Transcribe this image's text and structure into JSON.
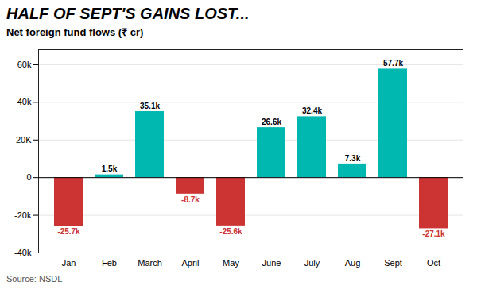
{
  "chart_data": {
    "type": "bar",
    "title": "HALF OF SEPT'S GAINS LOST...",
    "subtitle": "Net foreign fund flows (₹ cr)",
    "annotations": [
      "Source: NSDL"
    ],
    "categories": [
      "Jan",
      "Feb",
      "March",
      "April",
      "May",
      "June",
      "July",
      "Aug",
      "Sept",
      "Oct"
    ],
    "values": [
      -25.7,
      1.5,
      35.1,
      -8.7,
      -25.6,
      26.6,
      32.4,
      7.3,
      57.7,
      -27.1
    ],
    "value_labels": [
      "-25.7k",
      "1.5k",
      "35.1k",
      "-8.7k",
      "-25.6k",
      "26.6k",
      "32.4k",
      "7.3k",
      "57.7k",
      "-27.1k"
    ],
    "colors": [
      "#CC3333",
      "#00B8B0",
      "#00B8B0",
      "#CC3333",
      "#CC3333",
      "#00B8B0",
      "#00B8B0",
      "#00B8B0",
      "#00B8B0",
      "#CC3333"
    ],
    "ylim": [
      -40,
      68
    ],
    "yticks": [
      {
        "value": -40,
        "label": "-40k"
      },
      {
        "value": -20,
        "label": "-20k"
      },
      0,
      {
        "value": 20,
        "label": "20K"
      },
      {
        "value": 40,
        "label": "40k"
      },
      {
        "value": 60,
        "label": "60k"
      }
    ],
    "grid": true,
    "data_labels": true
  }
}
